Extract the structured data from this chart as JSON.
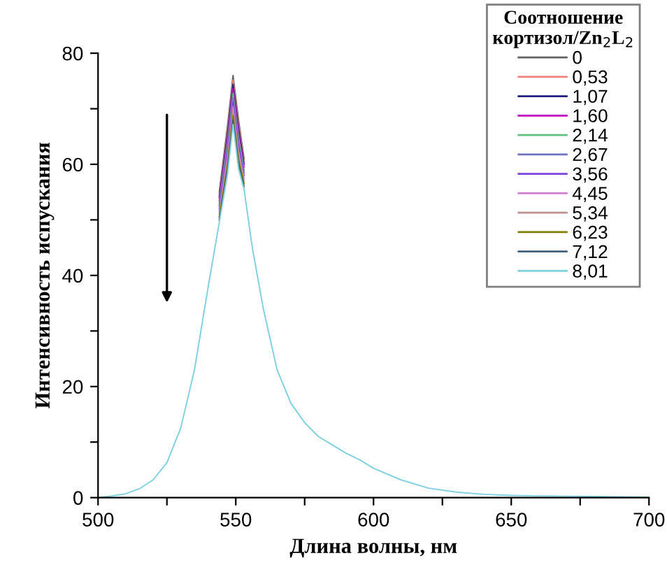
{
  "chart_data": {
    "type": "line",
    "xlabel": "Длина волны, нм",
    "ylabel": "Интенсивность испускания",
    "legend_title": "Соотношение\nкортизол/Zn$_{2}$L$_{2}$",
    "x": [
      500,
      505,
      510,
      515,
      520,
      525,
      530,
      535,
      540,
      544,
      547,
      549,
      551,
      553,
      556,
      560,
      565,
      570,
      575,
      580,
      585,
      590,
      595,
      600,
      610,
      620,
      630,
      640,
      650,
      660,
      680,
      700
    ],
    "series": [
      {
        "name": "0",
        "color": "#606060",
        "values": [
          null,
          null,
          null,
          null,
          null,
          null,
          null,
          null,
          null,
          55,
          67,
          76,
          68,
          61,
          null,
          null,
          null,
          null,
          null,
          null,
          null,
          null,
          null,
          null,
          null,
          null,
          null,
          null,
          null,
          null,
          null,
          null
        ]
      },
      {
        "name": "0,53",
        "color": "#f08080",
        "values": [
          null,
          null,
          null,
          null,
          null,
          null,
          null,
          null,
          null,
          54.5,
          66.2,
          75.2,
          67.2,
          60.5,
          null,
          null,
          null,
          null,
          null,
          null,
          null,
          null,
          null,
          null,
          null,
          null,
          null,
          null,
          null,
          null,
          null,
          null
        ]
      },
      {
        "name": "1,07",
        "color": "#202080",
        "values": [
          null,
          null,
          null,
          null,
          null,
          null,
          null,
          null,
          null,
          54,
          65.4,
          74.4,
          66.4,
          60,
          null,
          null,
          null,
          null,
          null,
          null,
          null,
          null,
          null,
          null,
          null,
          null,
          null,
          null,
          null,
          null,
          null,
          null
        ]
      },
      {
        "name": "1,60",
        "color": "#c000c0",
        "values": [
          null,
          null,
          null,
          null,
          null,
          null,
          null,
          null,
          null,
          53.5,
          64.6,
          73.6,
          65.6,
          59.5,
          null,
          null,
          null,
          null,
          null,
          null,
          null,
          null,
          null,
          null,
          null,
          null,
          null,
          null,
          null,
          null,
          null,
          null
        ]
      },
      {
        "name": "2,14",
        "color": "#60c080",
        "values": [
          null,
          null,
          null,
          null,
          null,
          null,
          null,
          null,
          null,
          53,
          63.8,
          72.8,
          64.8,
          59,
          null,
          null,
          null,
          null,
          null,
          null,
          null,
          null,
          null,
          null,
          null,
          null,
          null,
          null,
          null,
          null,
          null,
          null
        ]
      },
      {
        "name": "2,67",
        "color": "#7070c0",
        "values": [
          null,
          null,
          null,
          null,
          null,
          null,
          null,
          null,
          null,
          52.5,
          63,
          72,
          64,
          58.5,
          null,
          null,
          null,
          null,
          null,
          null,
          null,
          null,
          null,
          null,
          null,
          null,
          null,
          null,
          null,
          null,
          null,
          null
        ]
      },
      {
        "name": "3,56",
        "color": "#8040e0",
        "values": [
          null,
          null,
          null,
          null,
          null,
          null,
          null,
          null,
          null,
          52,
          62.2,
          71.2,
          63.2,
          58,
          null,
          null,
          null,
          null,
          null,
          null,
          null,
          null,
          null,
          null,
          null,
          null,
          null,
          null,
          null,
          null,
          null,
          null
        ]
      },
      {
        "name": "4,45",
        "color": "#d080d0",
        "values": [
          null,
          null,
          null,
          null,
          null,
          null,
          null,
          null,
          null,
          51.5,
          61.4,
          70.4,
          62.4,
          57.5,
          null,
          null,
          null,
          null,
          null,
          null,
          null,
          null,
          null,
          null,
          null,
          null,
          null,
          null,
          null,
          null,
          null,
          null
        ]
      },
      {
        "name": "5,34",
        "color": "#c09090",
        "values": [
          null,
          null,
          null,
          null,
          null,
          null,
          null,
          null,
          null,
          51,
          60.6,
          69.6,
          61.6,
          57,
          null,
          null,
          null,
          null,
          null,
          null,
          null,
          null,
          null,
          null,
          null,
          null,
          null,
          null,
          null,
          null,
          null,
          null
        ]
      },
      {
        "name": "6,23",
        "color": "#808000",
        "values": [
          null,
          null,
          null,
          null,
          null,
          null,
          null,
          null,
          null,
          50.5,
          59.8,
          68.8,
          60.8,
          56.5,
          null,
          null,
          null,
          null,
          null,
          null,
          null,
          null,
          null,
          null,
          null,
          null,
          null,
          null,
          null,
          null,
          null,
          null
        ]
      },
      {
        "name": "7,12",
        "color": "#406080",
        "values": [
          null,
          null,
          null,
          null,
          null,
          null,
          null,
          null,
          null,
          50,
          59,
          68,
          60,
          56,
          null,
          null,
          null,
          null,
          null,
          null,
          null,
          null,
          null,
          null,
          null,
          null,
          null,
          null,
          null,
          null,
          null,
          null
        ]
      },
      {
        "name": "8,01",
        "color": "#80d0e0",
        "values": [
          0,
          0.3,
          0.7,
          1.6,
          3.2,
          6.3,
          12.5,
          23,
          38,
          49.5,
          58.2,
          67.2,
          59.2,
          55.5,
          45,
          34,
          23,
          17,
          13.5,
          11,
          9.5,
          8,
          6.8,
          5.3,
          3.2,
          1.7,
          1,
          0.6,
          0.4,
          0.3,
          0.2,
          0.1
        ]
      }
    ],
    "xlim": [
      500,
      700
    ],
    "ylim": [
      0,
      80
    ],
    "xticks": [
      500,
      {
        "value": 525,
        "label": null
      },
      550,
      {
        "value": 575,
        "label": null
      },
      600,
      {
        "value": 625,
        "label": null
      },
      650,
      {
        "value": 675,
        "label": null
      },
      700
    ],
    "yticks": [
      0,
      {
        "value": 10,
        "label": null
      },
      20,
      {
        "value": 30,
        "label": null
      },
      40,
      {
        "value": 50,
        "label": null
      },
      60,
      {
        "value": 70,
        "label": null
      },
      80
    ],
    "grid": false,
    "legend": "top right",
    "line_style": "solid",
    "marker": "none"
  }
}
